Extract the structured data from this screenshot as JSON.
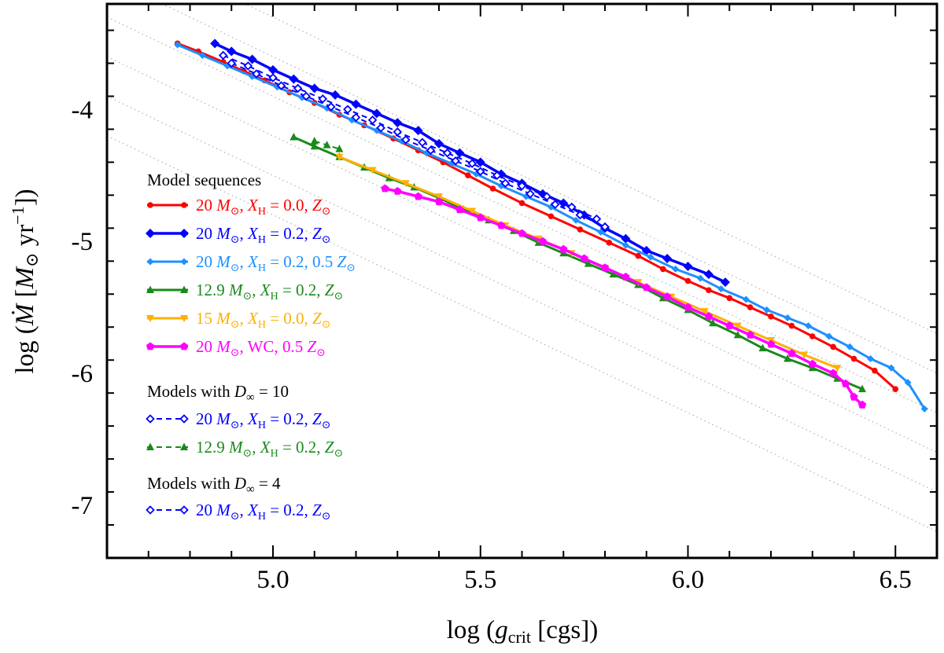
{
  "chart_data": {
    "type": "line",
    "title": "",
    "xlabel": "log (g_crit [cgs])",
    "ylabel": "log (Ṁ [M_⊙ yr⁻¹])",
    "xlim": [
      4.6,
      6.6
    ],
    "ylim": [
      -7.4,
      -3.2
    ],
    "x_ticks": [
      5.0,
      5.5,
      6.0,
      6.5
    ],
    "x_tick_labels": [
      "5.0",
      "5.5",
      "6.0",
      "6.5"
    ],
    "y_ticks": [
      -4,
      -5,
      -6,
      -7
    ],
    "y_tick_labels": [
      "-4",
      "-5",
      "-6",
      "-7"
    ],
    "grid": false,
    "reference_lines": {
      "style": "dotted",
      "color": "#b0b0b0",
      "slope": -1.5,
      "intercepts_y_at_x_4_6": [
        -2.7,
        -3.0,
        -3.3,
        -3.6,
        -3.9,
        -4.2
      ]
    },
    "legend": {
      "placement": "left",
      "groups": [
        {
          "title_prefix": "Model sequences",
          "title_sym": "",
          "title_suffix": "",
          "entries": [
            {
              "series": "s1",
              "mass": "20",
              "xh": "0.0",
              "z": "",
              "extra": ""
            },
            {
              "series": "s2",
              "mass": "20",
              "xh": "0.2",
              "z": "",
              "extra": ""
            },
            {
              "series": "s3",
              "mass": "20",
              "xh": "0.2",
              "z": "0.5",
              "extra": ""
            },
            {
              "series": "s4",
              "mass": "12.9",
              "xh": "0.2",
              "z": "",
              "extra": ""
            },
            {
              "series": "s5",
              "mass": "15",
              "xh": "0.0",
              "z": "",
              "extra": ""
            },
            {
              "series": "s6",
              "mass": "20",
              "xh": null,
              "z": "0.5",
              "extra": "WC"
            }
          ]
        },
        {
          "title_prefix": "Models with ",
          "title_sym": "D",
          "title_suffix": " = 10",
          "entries": [
            {
              "series": "s7",
              "mass": "20",
              "xh": "0.2",
              "z": "",
              "extra": ""
            },
            {
              "series": "s8",
              "mass": "12.9",
              "xh": "0.2",
              "z": "",
              "extra": ""
            }
          ]
        },
        {
          "title_prefix": "Models with ",
          "title_sym": "D",
          "title_suffix": " = 4",
          "entries": [
            {
              "series": "s9",
              "mass": "20",
              "xh": "0.2",
              "z": "",
              "extra": ""
            }
          ]
        }
      ]
    },
    "series": [
      {
        "id": "s1",
        "name": "20 M⊙, X_H = 0.0, Z⊙",
        "color": "#ff0000",
        "marker": "circle",
        "dash": "solid",
        "width": 3,
        "x": [
          4.77,
          4.82,
          4.88,
          4.93,
          4.98,
          5.04,
          5.1,
          5.16,
          5.22,
          5.29,
          5.35,
          5.41,
          5.47,
          5.53,
          5.6,
          5.67,
          5.74,
          5.81,
          5.88,
          5.94,
          6.0,
          6.05,
          6.1,
          6.15,
          6.2,
          6.25,
          6.3,
          6.35,
          6.4,
          6.45,
          6.5
        ],
        "y": [
          -3.5,
          -3.56,
          -3.64,
          -3.71,
          -3.78,
          -3.87,
          -3.95,
          -4.04,
          -4.12,
          -4.22,
          -4.31,
          -4.4,
          -4.5,
          -4.6,
          -4.71,
          -4.81,
          -4.91,
          -5.01,
          -5.11,
          -5.21,
          -5.3,
          -5.37,
          -5.43,
          -5.5,
          -5.57,
          -5.64,
          -5.72,
          -5.8,
          -5.89,
          -5.98,
          -6.12
        ]
      },
      {
        "id": "s2",
        "name": "20 M⊙, X_H = 0.2, Z⊙",
        "color": "#0000ff",
        "marker": "diamond",
        "dash": "solid",
        "width": 3.5,
        "x": [
          4.86,
          4.9,
          4.95,
          5.0,
          5.05,
          5.1,
          5.15,
          5.2,
          5.25,
          5.3,
          5.35,
          5.4,
          5.45,
          5.5,
          5.55,
          5.6,
          5.65,
          5.7,
          5.75,
          5.8,
          5.85,
          5.9,
          5.95,
          6.0,
          6.05,
          6.09
        ],
        "y": [
          -3.5,
          -3.56,
          -3.62,
          -3.7,
          -3.77,
          -3.84,
          -3.89,
          -3.96,
          -4.03,
          -4.1,
          -4.16,
          -4.26,
          -4.33,
          -4.4,
          -4.49,
          -4.56,
          -4.64,
          -4.71,
          -4.8,
          -4.9,
          -4.98,
          -5.07,
          -5.13,
          -5.19,
          -5.25,
          -5.31
        ]
      },
      {
        "id": "s3",
        "name": "20 M⊙, X_H = 0.2, 0.5 Z⊙",
        "color": "#1e90ff",
        "marker": "diamond-small",
        "dash": "solid",
        "width": 3,
        "x": [
          4.77,
          4.83,
          4.89,
          4.95,
          5.01,
          5.07,
          5.13,
          5.19,
          5.25,
          5.31,
          5.37,
          5.43,
          5.49,
          5.55,
          5.61,
          5.67,
          5.73,
          5.79,
          5.85,
          5.91,
          5.97,
          6.03,
          6.08,
          6.14,
          6.19,
          6.24,
          6.29,
          6.34,
          6.39,
          6.44,
          6.49,
          6.53,
          6.57
        ],
        "y": [
          -3.51,
          -3.59,
          -3.67,
          -3.75,
          -3.83,
          -3.91,
          -3.99,
          -4.08,
          -4.16,
          -4.24,
          -4.33,
          -4.41,
          -4.49,
          -4.58,
          -4.66,
          -4.74,
          -4.84,
          -4.93,
          -5.03,
          -5.12,
          -5.21,
          -5.28,
          -5.36,
          -5.44,
          -5.52,
          -5.58,
          -5.64,
          -5.72,
          -5.8,
          -5.89,
          -5.96,
          -6.07,
          -6.27
        ]
      },
      {
        "id": "s4",
        "name": "12.9 M⊙, X_H = 0.2, Z⊙",
        "color": "#1a8a1a",
        "marker": "triangle",
        "dash": "solid",
        "width": 3,
        "x": [
          5.05,
          5.1,
          5.16,
          5.22,
          5.28,
          5.34,
          5.4,
          5.46,
          5.52,
          5.58,
          5.64,
          5.7,
          5.76,
          5.82,
          5.88,
          5.94,
          6.0,
          6.06,
          6.12,
          6.18,
          6.24,
          6.3,
          6.36,
          6.42
        ],
        "y": [
          -4.21,
          -4.28,
          -4.36,
          -4.44,
          -4.52,
          -4.59,
          -4.67,
          -4.76,
          -4.84,
          -4.92,
          -5.01,
          -5.09,
          -5.17,
          -5.25,
          -5.33,
          -5.43,
          -5.52,
          -5.62,
          -5.71,
          -5.81,
          -5.89,
          -5.96,
          -6.04,
          -6.12
        ]
      },
      {
        "id": "s5",
        "name": "15 M⊙, X_H = 0.0, Z⊙",
        "color": "#ffb000",
        "marker": "triangle-down",
        "dash": "solid",
        "width": 3,
        "x": [
          5.16,
          5.24,
          5.32,
          5.4,
          5.48,
          5.56,
          5.64,
          5.72,
          5.8,
          5.88,
          5.96,
          6.04,
          6.12,
          6.2,
          6.28,
          6.36
        ],
        "y": [
          -4.36,
          -4.46,
          -4.56,
          -4.66,
          -4.77,
          -4.88,
          -4.98,
          -5.09,
          -5.2,
          -5.31,
          -5.42,
          -5.53,
          -5.64,
          -5.75,
          -5.86,
          -5.96
        ]
      },
      {
        "id": "s6",
        "name": "20 M⊙, WC, 0.5 Z⊙",
        "color": "#ff00ff",
        "marker": "pentagon",
        "dash": "solid",
        "width": 3.5,
        "x": [
          5.27,
          5.3,
          5.35,
          5.4,
          5.45,
          5.5,
          5.55,
          5.6,
          5.65,
          5.7,
          5.75,
          5.8,
          5.85,
          5.9,
          5.95,
          6.0,
          6.05,
          6.1,
          6.15,
          6.2,
          6.25,
          6.3,
          6.35,
          6.38,
          6.4,
          6.42
        ],
        "y": [
          -4.6,
          -4.62,
          -4.66,
          -4.7,
          -4.76,
          -4.82,
          -4.88,
          -4.94,
          -5.0,
          -5.06,
          -5.13,
          -5.2,
          -5.27,
          -5.35,
          -5.42,
          -5.5,
          -5.57,
          -5.64,
          -5.71,
          -5.78,
          -5.85,
          -5.93,
          -6.0,
          -6.08,
          -6.18,
          -6.24
        ]
      },
      {
        "id": "s7",
        "name": "20 M⊙, X_H = 0.2, Z⊙ (D∞ = 10)",
        "color": "#0000ff",
        "marker": "open-diamond",
        "dash": "dashed",
        "width": 2,
        "x": [
          4.88,
          4.94,
          5.0,
          5.06,
          5.12,
          5.18,
          5.24,
          5.3,
          5.36,
          5.42,
          5.48,
          5.54,
          5.6,
          5.66,
          5.72,
          5.78
        ],
        "y": [
          -3.59,
          -3.67,
          -3.76,
          -3.84,
          -3.92,
          -4.0,
          -4.08,
          -4.17,
          -4.25,
          -4.33,
          -4.41,
          -4.5,
          -4.58,
          -4.66,
          -4.74,
          -4.83
        ]
      },
      {
        "id": "s8",
        "name": "12.9 M⊙, X_H = 0.2, Z⊙ (D∞ = 10)",
        "color": "#1a8a1a",
        "marker": "triangle",
        "dash": "dashed",
        "width": 2,
        "x": [
          5.1,
          5.13,
          5.16
        ],
        "y": [
          -4.24,
          -4.27,
          -4.3
        ]
      },
      {
        "id": "s9",
        "name": "20 M⊙, X_H = 0.2, Z⊙ (D∞ = 4)",
        "color": "#0000ff",
        "marker": "open-diamond",
        "dash": "dashed",
        "width": 2,
        "x": [
          4.9,
          4.96,
          5.02,
          5.08,
          5.14,
          5.2,
          5.26,
          5.32,
          5.38,
          5.44,
          5.5,
          5.56,
          5.62,
          5.68,
          5.74,
          5.8
        ],
        "y": [
          -3.65,
          -3.73,
          -3.82,
          -3.9,
          -3.98,
          -4.06,
          -4.14,
          -4.23,
          -4.31,
          -4.39,
          -4.47,
          -4.56,
          -4.64,
          -4.72,
          -4.8,
          -4.89
        ]
      }
    ]
  }
}
